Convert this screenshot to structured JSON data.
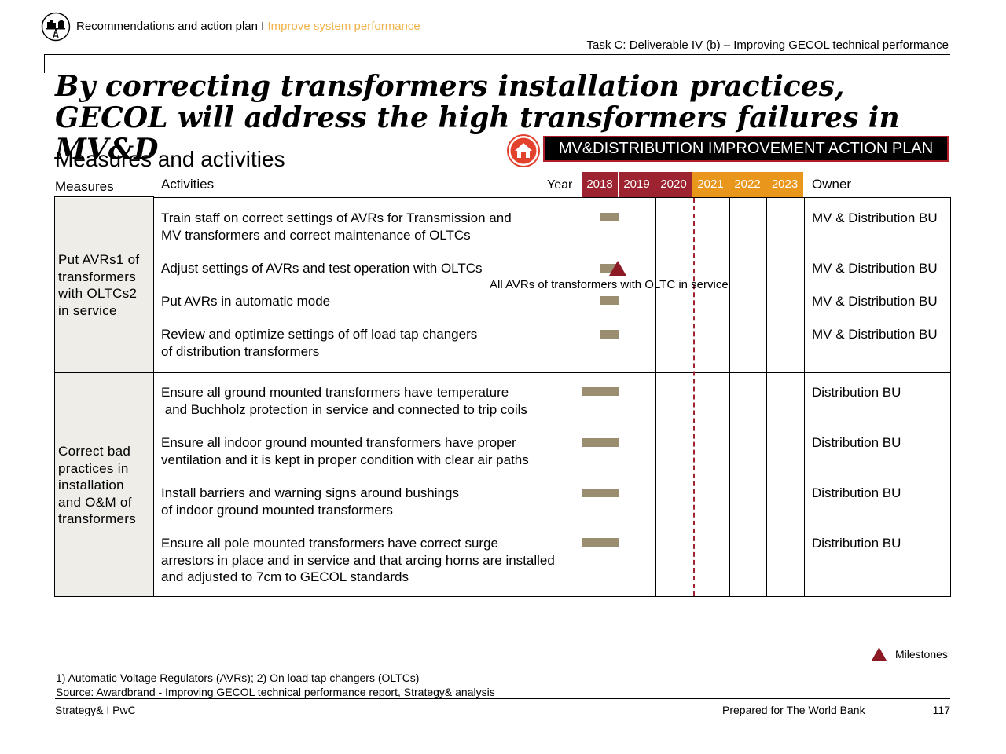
{
  "header": {
    "breadcrumb_main": "Recommendations and action plan",
    "breadcrumb_separator": " I ",
    "breadcrumb_highlight": "Improve system performance",
    "task": "Task C: Deliverable IV (b) – Improving GECOL technical performance"
  },
  "title": "By correcting transformers installation practices, GECOL will address the high transformers failures in MV&D",
  "subtitle": "Measures and activities",
  "banner": "MV&DISTRIBUTION IMPROVEMENT ACTION PLAN",
  "table": {
    "col_measures": "Measures",
    "col_activities": "Activities",
    "col_year": "Year",
    "col_owner": "Owner",
    "years": [
      "2018",
      "2019",
      "2020",
      "2021",
      "2022",
      "2023"
    ],
    "groups": [
      {
        "measure": "Put AVRs1 of transformers with OLTCs2 in service",
        "activities": [
          {
            "text": "Train staff on correct settings of AVRs for Transmission and\nMV transformers and correct maintenance of OLTCs",
            "owner": "MV & Distribution BU"
          },
          {
            "text": "Adjust settings of AVRs and test operation with OLTCs",
            "owner": "MV & Distribution BU"
          },
          {
            "text": "Put AVRs in automatic mode",
            "owner": "MV & Distribution BU"
          },
          {
            "text": "Review and optimize settings of off load tap changers\nof distribution transformers",
            "owner": "MV & Distribution BU"
          }
        ]
      },
      {
        "measure": "Correct bad practices in installation and O&M of transformers",
        "activities": [
          {
            "text": "Ensure all ground mounted transformers have temperature\n and Buchholz protection in service and connected to trip coils",
            "owner": "Distribution BU"
          },
          {
            "text": "Ensure all indoor ground mounted transformers have proper\nventilation and it is kept in proper condition with clear air paths",
            "owner": "Distribution BU"
          },
          {
            "text": "Install barriers and warning signs around bushings\nof indoor ground mounted transformers",
            "owner": "Distribution BU"
          },
          {
            "text": "Ensure all pole mounted transformers have correct surge\narrestors in place and in service and that arcing horns are installed\nand adjusted to 7cm to GECOL standards",
            "owner": "Distribution BU"
          }
        ]
      }
    ],
    "milestone_label": "All AVRs of transformers with OLTC in service"
  },
  "legend": {
    "milestones": "Milestones"
  },
  "colors": {
    "dark_red": "#9d2330",
    "orange": "#e8961c",
    "bar": "#9b8e70",
    "highlight": "#f0b34a",
    "measure_bg": "#eeede8"
  },
  "footnote": {
    "notes": "1) Automatic Voltage Regulators (AVRs); 2) On load tap changers (OLTCs)",
    "source": "Source: Awardbrand - Improving GECOL technical performance report, Strategy& analysis"
  },
  "footer": {
    "left": "Strategy& I PwC",
    "middle": "Prepared for The World Bank",
    "page": "117"
  }
}
